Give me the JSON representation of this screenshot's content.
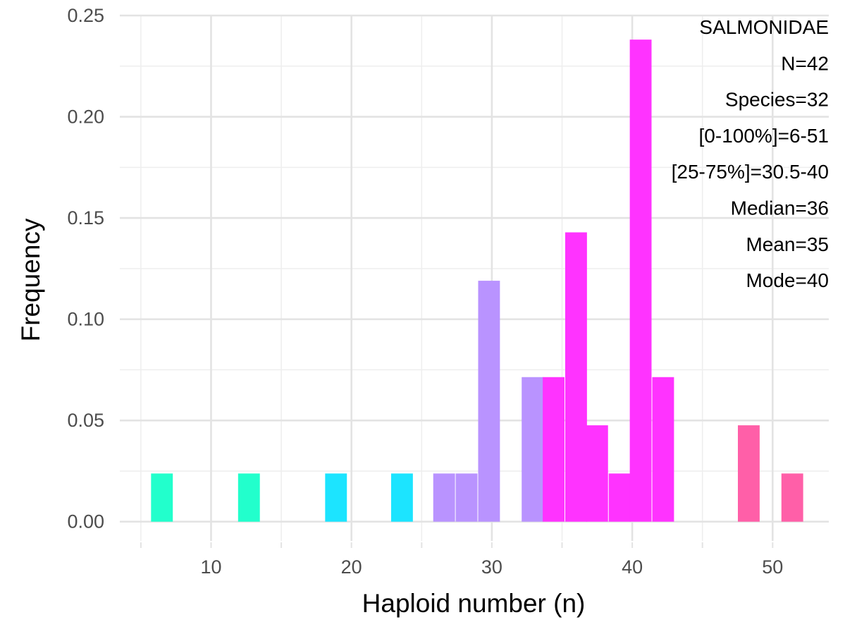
{
  "chart_data": {
    "type": "bar",
    "xlabel": "Haploid number (n)",
    "ylabel": "Frequency",
    "xlim": [
      3.5,
      54
    ],
    "ylim": [
      -0.0095,
      0.25
    ],
    "x_ticks": [
      10,
      20,
      30,
      40,
      50
    ],
    "y_ticks": [
      0.0,
      0.05,
      0.1,
      0.15,
      0.2,
      0.25
    ],
    "y_tick_labels": [
      "0.00",
      "0.05",
      "0.10",
      "0.15",
      "0.20",
      "0.25"
    ],
    "bin_width": 1.55,
    "grid": true,
    "legend": "none",
    "annotation_lines": [
      "SALMONIDAE",
      "N=42",
      "Species=32",
      "[0-100%]=6-51",
      "[25-75%]=30.5-40",
      "Median=36",
      "Mean=35",
      "Mode=40"
    ],
    "bars": [
      {
        "x": 6.5,
        "y": 0.0238,
        "color": "#22ffcc"
      },
      {
        "x": 12.7,
        "y": 0.0238,
        "color": "#22ffcc"
      },
      {
        "x": 18.9,
        "y": 0.0238,
        "color": "#1ce4ff"
      },
      {
        "x": 23.6,
        "y": 0.0238,
        "color": "#1ce4ff"
      },
      {
        "x": 26.6,
        "y": 0.0238,
        "color": "#b993ff"
      },
      {
        "x": 28.2,
        "y": 0.0238,
        "color": "#b993ff"
      },
      {
        "x": 29.8,
        "y": 0.119,
        "color": "#b993ff"
      },
      {
        "x": 32.9,
        "y": 0.0714,
        "color": "#b993ff"
      },
      {
        "x": 34.4,
        "y": 0.0714,
        "color": "#ff33ff"
      },
      {
        "x": 36.0,
        "y": 0.1429,
        "color": "#ff33ff"
      },
      {
        "x": 37.5,
        "y": 0.0476,
        "color": "#ff33ff"
      },
      {
        "x": 39.1,
        "y": 0.0238,
        "color": "#ff33ff"
      },
      {
        "x": 40.6,
        "y": 0.2381,
        "color": "#ff33ff"
      },
      {
        "x": 42.2,
        "y": 0.0714,
        "color": "#ff33ff"
      },
      {
        "x": 48.3,
        "y": 0.0476,
        "color": "#ff5fa8"
      },
      {
        "x": 51.4,
        "y": 0.0238,
        "color": "#ff5fa8"
      }
    ]
  }
}
